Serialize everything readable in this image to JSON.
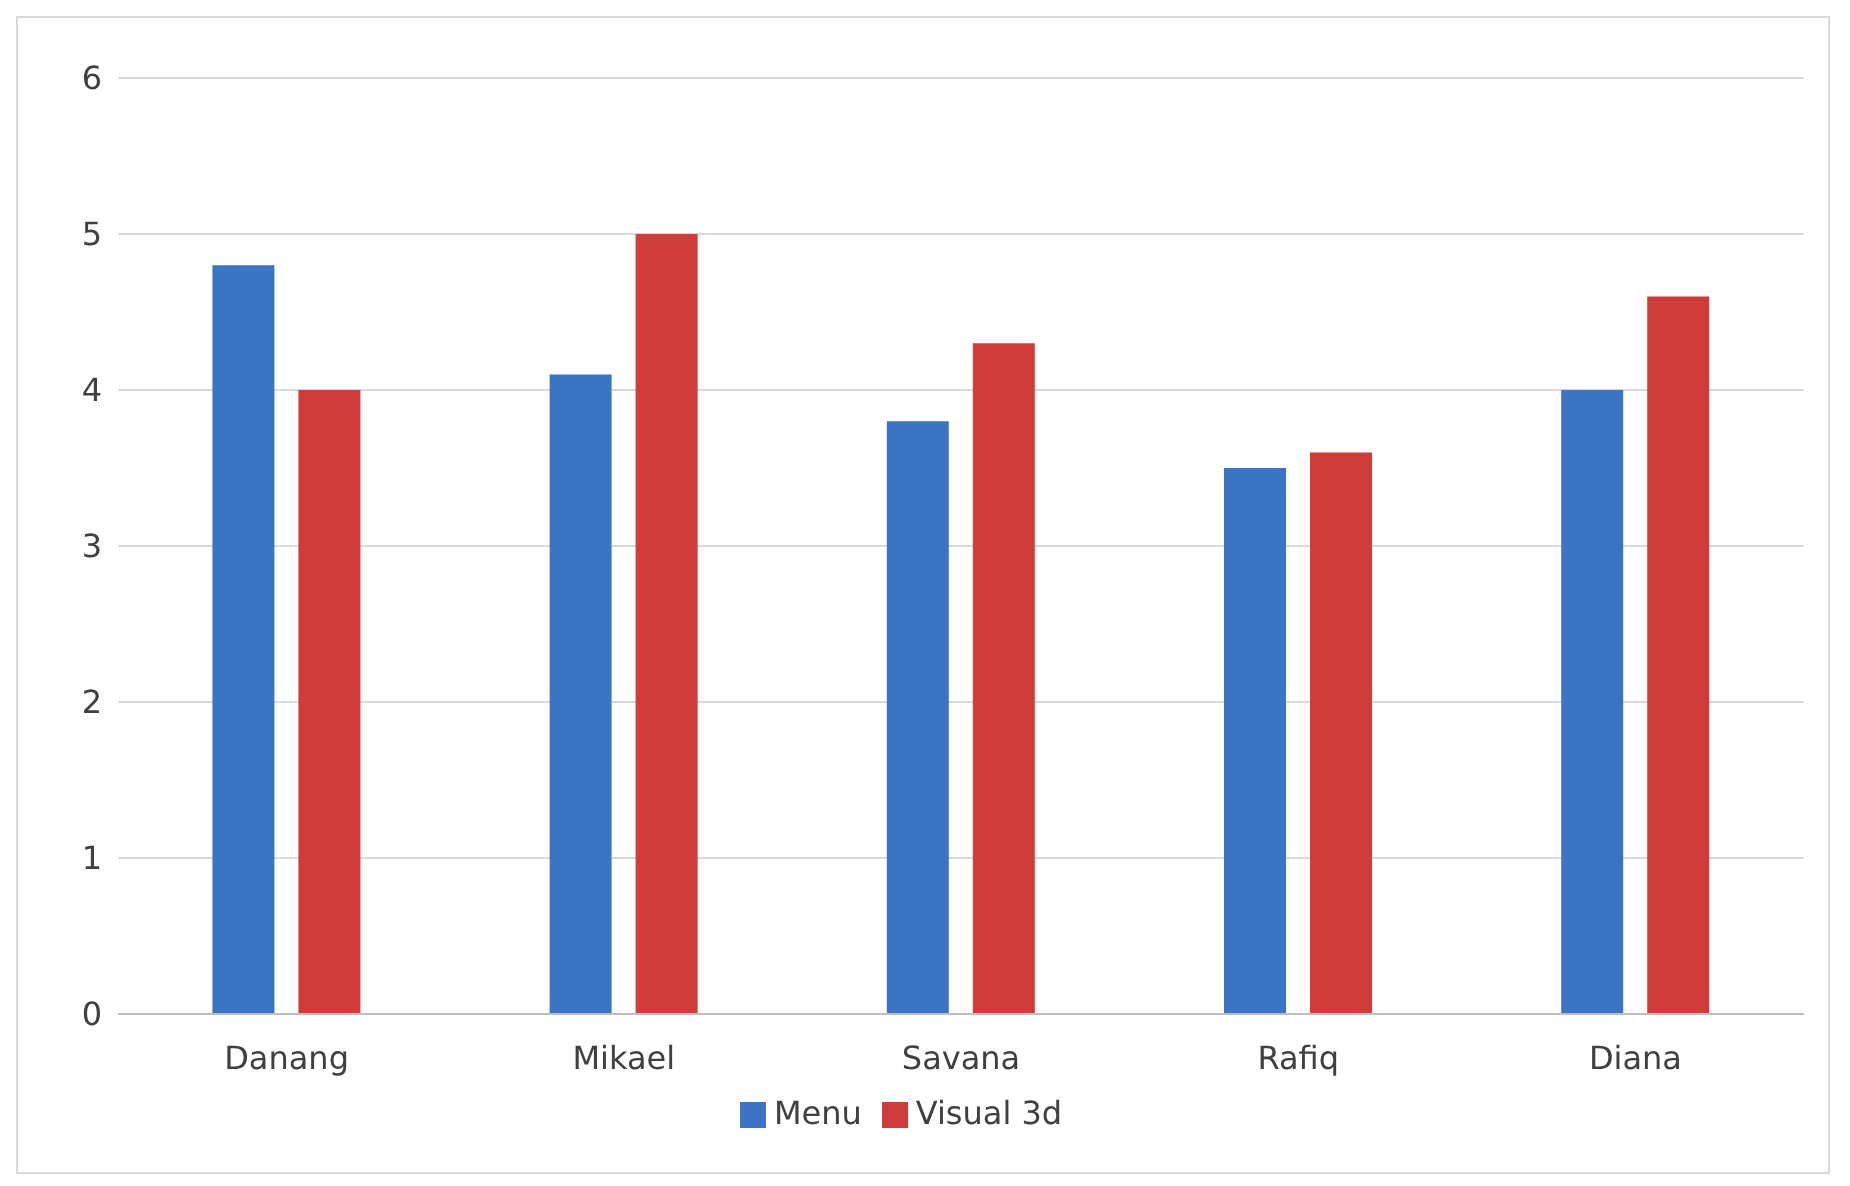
{
  "chart_data": {
    "type": "bar",
    "categories": [
      "Danang",
      "Mikael",
      "Savana",
      "Rafiq",
      "Diana"
    ],
    "series": [
      {
        "name": "Menu",
        "color": "#3b74c4",
        "values": [
          4.8,
          4.1,
          3.8,
          3.5,
          4.0
        ]
      },
      {
        "name": "Visual 3d",
        "color": "#d03c3a",
        "values": [
          4.0,
          5.0,
          4.3,
          3.6,
          4.6
        ]
      }
    ],
    "ylim": [
      0,
      6
    ],
    "yticks": [
      0,
      1,
      2,
      3,
      4,
      5,
      6
    ],
    "grid": "y",
    "legend": "bottom"
  }
}
